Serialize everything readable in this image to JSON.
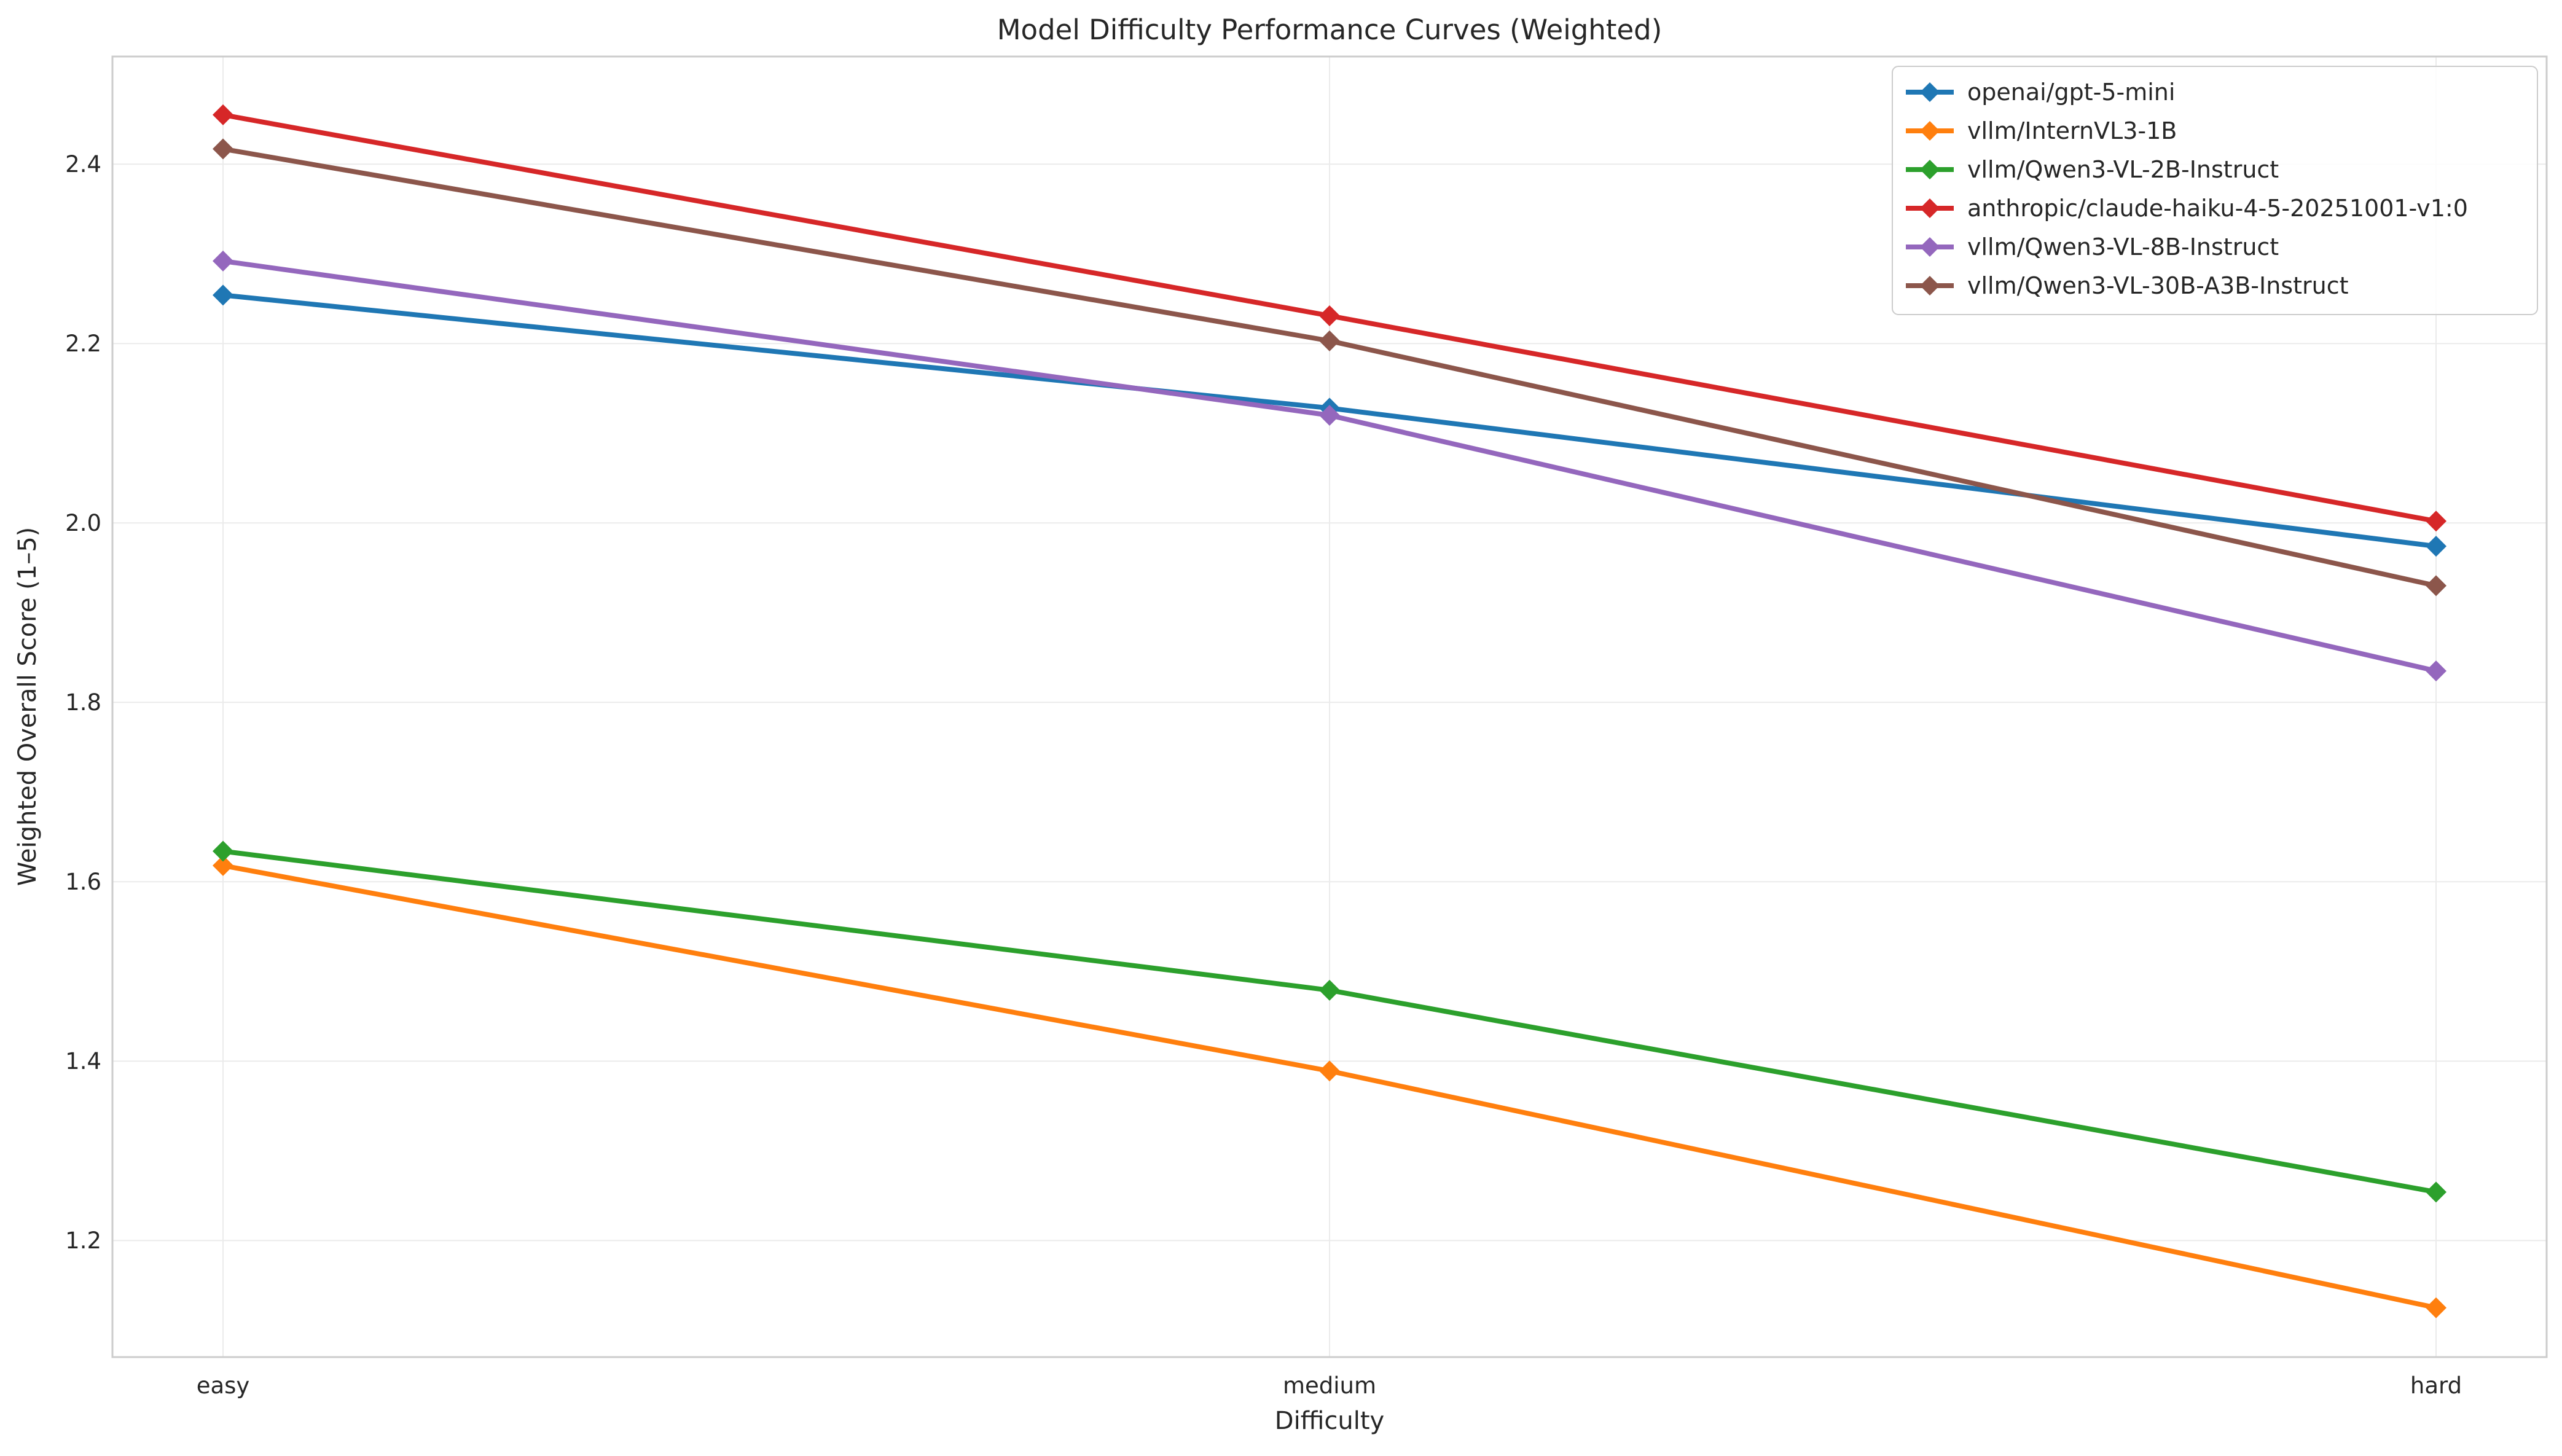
{
  "chart_data": {
    "type": "line",
    "title": "Model Difficulty Performance Curves (Weighted)",
    "xlabel": "Difficulty",
    "ylabel": "Weighted Overall Score (1–5)",
    "categories": [
      "easy",
      "medium",
      "hard"
    ],
    "ylim": [
      1.07,
      2.52
    ],
    "yticks": [
      1.2,
      1.4,
      1.6,
      1.8,
      2.0,
      2.2,
      2.4
    ],
    "ytick_labels": [
      "1.2",
      "1.4",
      "1.6",
      "1.8",
      "2.0",
      "2.2",
      "2.4"
    ],
    "grid": true,
    "legend_position": "top-right",
    "marker": "diamond",
    "series": [
      {
        "name": "openai/gpt-5-mini",
        "color": "#1f77b4",
        "values": [
          2.254,
          2.128,
          1.974
        ]
      },
      {
        "name": "vllm/InternVL3-1B",
        "color": "#ff7f0e",
        "values": [
          1.618,
          1.389,
          1.125
        ]
      },
      {
        "name": "vllm/Qwen3-VL-2B-Instruct",
        "color": "#2ca02c",
        "values": [
          1.634,
          1.479,
          1.254
        ]
      },
      {
        "name": "anthropic/claude-haiku-4-5-20251001-v1:0",
        "color": "#d62728",
        "values": [
          2.455,
          2.231,
          2.002
        ]
      },
      {
        "name": "vllm/Qwen3-VL-8B-Instruct",
        "color": "#9467bd",
        "values": [
          2.292,
          2.12,
          1.835
        ]
      },
      {
        "name": "vllm/Qwen3-VL-30B-A3B-Instruct",
        "color": "#8c564b",
        "values": [
          2.417,
          2.203,
          1.93
        ]
      }
    ]
  }
}
